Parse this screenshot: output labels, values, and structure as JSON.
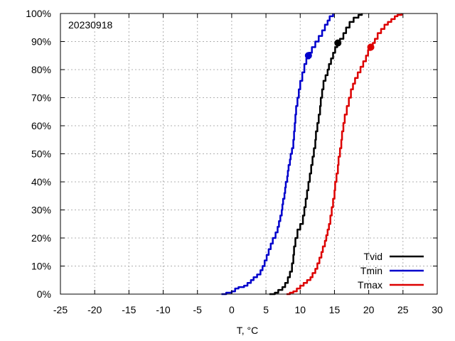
{
  "chart_data": {
    "type": "line",
    "annotation": "20230918",
    "xlabel": "T, °C",
    "ylabel": "",
    "xlim": [
      -25,
      30
    ],
    "ylim": [
      0,
      100
    ],
    "xticks": [
      "-25",
      "-20",
      "-15",
      "-10",
      "-5",
      "0",
      "5",
      "10",
      "15",
      "20",
      "25",
      "30"
    ],
    "yticks": [
      "0%",
      "10%",
      "20%",
      "30%",
      "40%",
      "50%",
      "60%",
      "70%",
      "80%",
      "90%",
      "100%"
    ],
    "grid": true,
    "legend_position": "bottom-right",
    "series": [
      {
        "name": "Tvid",
        "color": "#000000",
        "points": [
          [
            5.5,
            0
          ],
          [
            6.3,
            0.5
          ],
          [
            6.8,
            1.5
          ],
          [
            7.4,
            2.5
          ],
          [
            7.8,
            4
          ],
          [
            8.2,
            6
          ],
          [
            8.5,
            8
          ],
          [
            8.8,
            11
          ],
          [
            9.0,
            14
          ],
          [
            9.1,
            17
          ],
          [
            9.3,
            20
          ],
          [
            9.6,
            23
          ],
          [
            10.0,
            25
          ],
          [
            10.4,
            28
          ],
          [
            10.6,
            31
          ],
          [
            10.8,
            34
          ],
          [
            11.0,
            37
          ],
          [
            11.2,
            40
          ],
          [
            11.4,
            43
          ],
          [
            11.6,
            46
          ],
          [
            11.8,
            49
          ],
          [
            12.0,
            52
          ],
          [
            12.2,
            55
          ],
          [
            12.3,
            58
          ],
          [
            12.5,
            61
          ],
          [
            12.7,
            64
          ],
          [
            12.9,
            67
          ],
          [
            13.0,
            70
          ],
          [
            13.2,
            73
          ],
          [
            13.4,
            76
          ],
          [
            13.7,
            78
          ],
          [
            14.0,
            80
          ],
          [
            14.2,
            82
          ],
          [
            14.5,
            84
          ],
          [
            14.8,
            86
          ],
          [
            15.1,
            88
          ],
          [
            15.4,
            89.5
          ],
          [
            15.8,
            91
          ],
          [
            16.3,
            93
          ],
          [
            16.7,
            95
          ],
          [
            17.2,
            97
          ],
          [
            17.8,
            98.5
          ],
          [
            18.5,
            99.5
          ],
          [
            19.0,
            100
          ]
        ],
        "marker": [
          15.5,
          89.5
        ]
      },
      {
        "name": "Tmin",
        "color": "#0000cc",
        "points": [
          [
            -1.5,
            0
          ],
          [
            -0.8,
            0.5
          ],
          [
            0,
            1
          ],
          [
            0.5,
            2
          ],
          [
            1,
            2.5
          ],
          [
            1.8,
            3
          ],
          [
            2.3,
            4
          ],
          [
            2.8,
            5
          ],
          [
            3.2,
            6
          ],
          [
            3.7,
            7
          ],
          [
            4.2,
            8.5
          ],
          [
            4.5,
            10
          ],
          [
            4.8,
            12
          ],
          [
            5.1,
            14
          ],
          [
            5.4,
            16
          ],
          [
            5.7,
            18
          ],
          [
            6.0,
            20
          ],
          [
            6.4,
            22
          ],
          [
            6.7,
            24
          ],
          [
            6.9,
            26
          ],
          [
            7.1,
            28
          ],
          [
            7.3,
            30
          ],
          [
            7.4,
            32
          ],
          [
            7.5,
            34
          ],
          [
            7.7,
            36
          ],
          [
            7.8,
            38
          ],
          [
            7.9,
            40
          ],
          [
            8.1,
            42
          ],
          [
            8.2,
            44
          ],
          [
            8.3,
            46
          ],
          [
            8.5,
            48
          ],
          [
            8.6,
            50
          ],
          [
            8.8,
            52
          ],
          [
            9.0,
            55
          ],
          [
            9.1,
            58
          ],
          [
            9.2,
            61
          ],
          [
            9.3,
            64
          ],
          [
            9.4,
            67
          ],
          [
            9.6,
            70
          ],
          [
            9.8,
            73
          ],
          [
            10.0,
            76
          ],
          [
            10.3,
            79
          ],
          [
            10.6,
            82
          ],
          [
            10.9,
            84
          ],
          [
            11.3,
            86
          ],
          [
            11.7,
            88
          ],
          [
            12.2,
            90
          ],
          [
            12.7,
            92
          ],
          [
            13.2,
            94
          ],
          [
            13.6,
            96
          ],
          [
            14.0,
            97.5
          ],
          [
            14.3,
            99
          ],
          [
            14.8,
            100
          ]
        ],
        "marker": [
          11.2,
          85
        ]
      },
      {
        "name": "Tmax",
        "color": "#dd0000",
        "points": [
          [
            8,
            0
          ],
          [
            8.5,
            0.5
          ],
          [
            9,
            1
          ],
          [
            9.5,
            2
          ],
          [
            10,
            3
          ],
          [
            10.5,
            4
          ],
          [
            11,
            5
          ],
          [
            11.5,
            6
          ],
          [
            11.8,
            7.5
          ],
          [
            12.2,
            9
          ],
          [
            12.5,
            11
          ],
          [
            12.8,
            13
          ],
          [
            13.1,
            15
          ],
          [
            13.3,
            17
          ],
          [
            13.6,
            19
          ],
          [
            13.8,
            21
          ],
          [
            14.0,
            23
          ],
          [
            14.2,
            25
          ],
          [
            14.4,
            28
          ],
          [
            14.6,
            31
          ],
          [
            14.8,
            34
          ],
          [
            15.0,
            37
          ],
          [
            15.1,
            40
          ],
          [
            15.3,
            43
          ],
          [
            15.5,
            46
          ],
          [
            15.6,
            49
          ],
          [
            15.8,
            52
          ],
          [
            16.0,
            55
          ],
          [
            16.1,
            58
          ],
          [
            16.3,
            61
          ],
          [
            16.5,
            64
          ],
          [
            16.8,
            67
          ],
          [
            17.1,
            70
          ],
          [
            17.4,
            73
          ],
          [
            17.7,
            75
          ],
          [
            18.0,
            77
          ],
          [
            18.4,
            79
          ],
          [
            18.8,
            81
          ],
          [
            19.2,
            83
          ],
          [
            19.6,
            85
          ],
          [
            19.9,
            87
          ],
          [
            20.3,
            88
          ],
          [
            20.6,
            89.5
          ],
          [
            20.9,
            91
          ],
          [
            21.3,
            93
          ],
          [
            21.8,
            94.5
          ],
          [
            22.3,
            96
          ],
          [
            22.8,
            97
          ],
          [
            23.3,
            98
          ],
          [
            23.8,
            99
          ],
          [
            24.2,
            99.5
          ],
          [
            24.8,
            100
          ]
        ],
        "marker": [
          20.3,
          88
        ]
      }
    ]
  }
}
